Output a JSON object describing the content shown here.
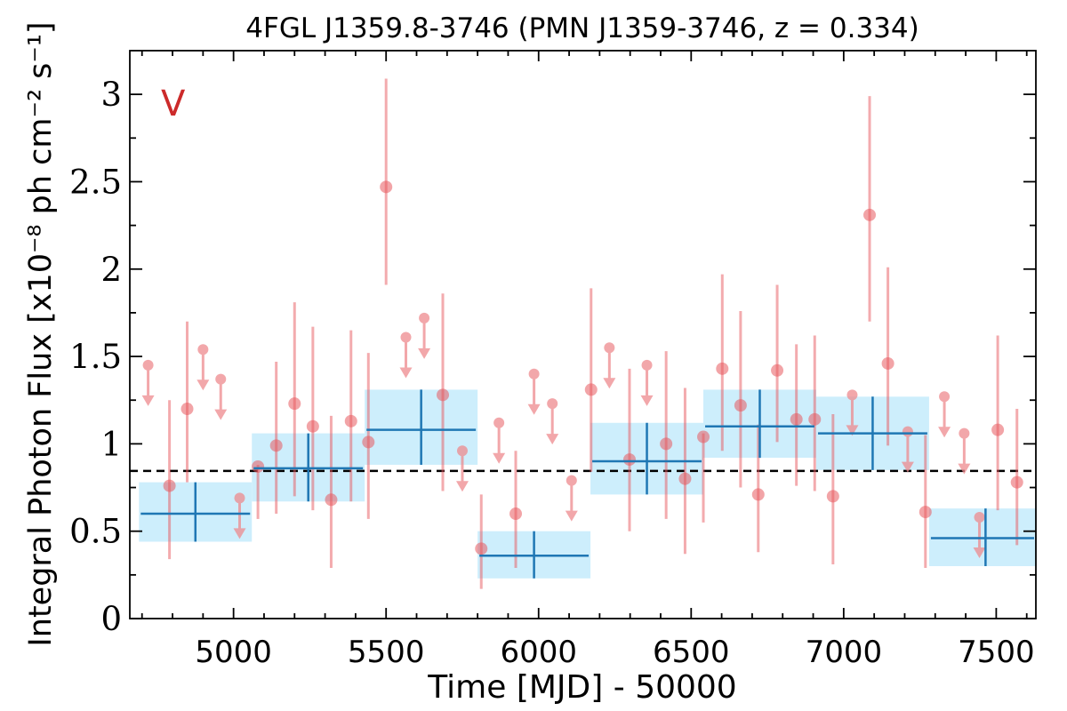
{
  "chart_data": {
    "type": "scatter",
    "title": "4FGL J1359.8-3746 (PMN J1359-3746, z = 0.334)",
    "xlabel": "Time [MJD] - 50000",
    "ylabel": "Integral Photon Flux [x10⁻⁸ ph cm⁻² s⁻¹]",
    "panel_label": "V",
    "xlim": [
      4660,
      7630
    ],
    "ylim": [
      0,
      3.25
    ],
    "x_ticks": [
      5000,
      5500,
      6000,
      6500,
      7000,
      7500
    ],
    "x_tick_labels": [
      "5000",
      "5500",
      "6000",
      "6500",
      "7000",
      "7500"
    ],
    "y_ticks": [
      0,
      0.5,
      1,
      1.5,
      2,
      2.5,
      3
    ],
    "y_tick_labels": [
      "0",
      "0.5",
      "1",
      "1.5",
      "2",
      "2.5",
      "3"
    ],
    "mean_flux": 0.845,
    "colors": {
      "detections": "#e8595f",
      "upper_limits": "#ee8a8e",
      "bins": "#1f77b4",
      "bin_band": "#cdeefc",
      "mean_line": "#000000",
      "panel_label": "#cc2a2a"
    },
    "detections": [
      {
        "x": 4790,
        "y": 0.76,
        "lo": 0.34,
        "hi": 1.25
      },
      {
        "x": 4848,
        "y": 1.2,
        "lo": 0.78,
        "hi": 1.7
      },
      {
        "x": 5080,
        "y": 0.87,
        "lo": 0.57,
        "hi": 0.88
      },
      {
        "x": 5140,
        "y": 0.99,
        "lo": 0.6,
        "hi": 1.47
      },
      {
        "x": 5200,
        "y": 1.23,
        "lo": 0.7,
        "hi": 1.81
      },
      {
        "x": 5260,
        "y": 1.1,
        "lo": 0.62,
        "hi": 1.67
      },
      {
        "x": 5320,
        "y": 0.68,
        "lo": 0.29,
        "hi": 1.16
      },
      {
        "x": 5385,
        "y": 1.13,
        "lo": 0.67,
        "hi": 1.65
      },
      {
        "x": 5442,
        "y": 1.01,
        "lo": 0.57,
        "hi": 1.52
      },
      {
        "x": 5500,
        "y": 2.47,
        "lo": 1.91,
        "hi": 3.09
      },
      {
        "x": 5686,
        "y": 1.28,
        "lo": 0.73,
        "hi": 1.86
      },
      {
        "x": 5812,
        "y": 0.4,
        "lo": 0.17,
        "hi": 0.71
      },
      {
        "x": 5925,
        "y": 0.6,
        "lo": 0.29,
        "hi": 0.96
      },
      {
        "x": 6172,
        "y": 1.31,
        "lo": 0.84,
        "hi": 1.89
      },
      {
        "x": 6298,
        "y": 0.91,
        "lo": 0.5,
        "hi": 1.43
      },
      {
        "x": 6418,
        "y": 1.0,
        "lo": 0.57,
        "hi": 1.53
      },
      {
        "x": 6480,
        "y": 0.8,
        "lo": 0.37,
        "hi": 1.32
      },
      {
        "x": 6540,
        "y": 1.04,
        "lo": 0.55,
        "hi": 1.06
      },
      {
        "x": 6602,
        "y": 1.43,
        "lo": 0.96,
        "hi": 1.97
      },
      {
        "x": 6662,
        "y": 1.22,
        "lo": 0.75,
        "hi": 1.76
      },
      {
        "x": 6720,
        "y": 0.71,
        "lo": 0.38,
        "hi": 1.11
      },
      {
        "x": 6782,
        "y": 1.42,
        "lo": 1.01,
        "hi": 1.91
      },
      {
        "x": 6845,
        "y": 1.14,
        "lo": 0.76,
        "hi": 1.57
      },
      {
        "x": 6905,
        "y": 1.14,
        "lo": 0.73,
        "hi": 1.62
      },
      {
        "x": 6965,
        "y": 0.7,
        "lo": 0.31,
        "hi": 1.17
      },
      {
        "x": 7085,
        "y": 2.31,
        "lo": 1.7,
        "hi": 2.99
      },
      {
        "x": 7145,
        "y": 1.46,
        "lo": 0.99,
        "hi": 2.01
      },
      {
        "x": 7268,
        "y": 0.61,
        "lo": 0.29,
        "hi": 1.05
      },
      {
        "x": 7505,
        "y": 1.08,
        "lo": 0.62,
        "hi": 1.62
      },
      {
        "x": 7568,
        "y": 0.78,
        "lo": 0.42,
        "hi": 1.2
      }
    ],
    "upper_limits": [
      {
        "x": 4720,
        "y": 1.45
      },
      {
        "x": 4900,
        "y": 1.54
      },
      {
        "x": 4958,
        "y": 1.37
      },
      {
        "x": 5020,
        "y": 0.69
      },
      {
        "x": 5565,
        "y": 1.61
      },
      {
        "x": 5625,
        "y": 1.72
      },
      {
        "x": 5750,
        "y": 0.96
      },
      {
        "x": 5870,
        "y": 1.12
      },
      {
        "x": 5985,
        "y": 1.4
      },
      {
        "x": 6045,
        "y": 1.23
      },
      {
        "x": 6108,
        "y": 0.79
      },
      {
        "x": 6232,
        "y": 1.55
      },
      {
        "x": 6355,
        "y": 1.45
      },
      {
        "x": 7028,
        "y": 1.28
      },
      {
        "x": 7210,
        "y": 1.07
      },
      {
        "x": 7330,
        "y": 1.27
      },
      {
        "x": 7395,
        "y": 1.06
      },
      {
        "x": 7445,
        "y": 0.58
      }
    ],
    "bins": [
      {
        "x0": 4690,
        "x1": 5060,
        "xc": 4875,
        "y": 0.6,
        "lo": 0.44,
        "hi": 0.78
      },
      {
        "x0": 5060,
        "x1": 5430,
        "xc": 5245,
        "y": 0.86,
        "lo": 0.67,
        "hi": 1.06
      },
      {
        "x0": 5430,
        "x1": 5800,
        "xc": 5615,
        "y": 1.08,
        "lo": 0.88,
        "hi": 1.31
      },
      {
        "x0": 5800,
        "x1": 6170,
        "xc": 5985,
        "y": 0.36,
        "lo": 0.23,
        "hi": 0.5
      },
      {
        "x0": 6170,
        "x1": 6540,
        "xc": 6355,
        "y": 0.9,
        "lo": 0.71,
        "hi": 1.12
      },
      {
        "x0": 6540,
        "x1": 6910,
        "xc": 6725,
        "y": 1.1,
        "lo": 0.92,
        "hi": 1.31
      },
      {
        "x0": 6910,
        "x1": 7280,
        "xc": 7095,
        "y": 1.06,
        "lo": 0.85,
        "hi": 1.27
      },
      {
        "x0": 7280,
        "x1": 7650,
        "xc": 7465,
        "y": 0.46,
        "lo": 0.3,
        "hi": 0.63
      }
    ]
  }
}
